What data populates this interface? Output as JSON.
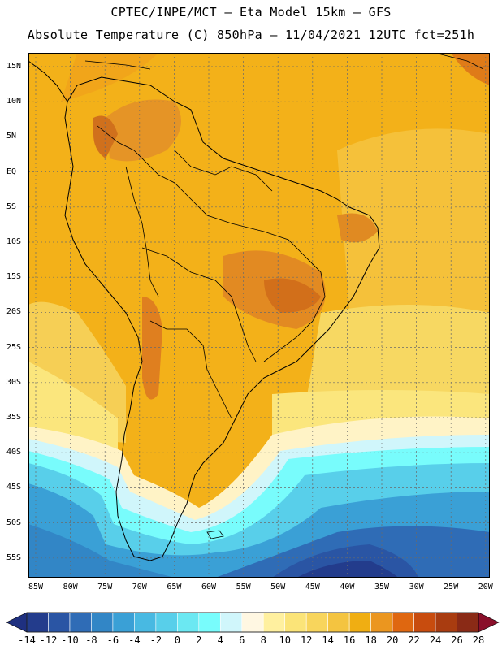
{
  "header": {
    "line1": "CPTEC/INPE/MCT –  Eta Model 15km – GFS",
    "line2": "Absolute Temperature (C) 850hPa – 11/04/2021 12UTC fct=251h"
  },
  "axes": {
    "lat_labels": [
      "15N",
      "10N",
      "5N",
      "EQ",
      "5S",
      "10S",
      "15S",
      "20S",
      "25S",
      "30S",
      "35S",
      "40S",
      "45S",
      "50S",
      "55S"
    ],
    "lon_labels": [
      "85W",
      "80W",
      "75W",
      "70W",
      "65W",
      "60W",
      "55W",
      "50W",
      "45W",
      "40W",
      "35W",
      "30W",
      "25W",
      "20W"
    ]
  },
  "colorbar": {
    "ticks": [
      "-14",
      "-12",
      "-10",
      "-8",
      "-6",
      "-4",
      "-2",
      "0",
      "2",
      "4",
      "6",
      "8",
      "10",
      "12",
      "14",
      "16",
      "18",
      "20",
      "22",
      "24",
      "26",
      "28"
    ],
    "colors": [
      "#233c8c",
      "#2a55a4",
      "#2f6cb6",
      "#3286c6",
      "#3aa0d6",
      "#48b9e2",
      "#58cfea",
      "#6be8f2",
      "#78fcfc",
      "#d0f6fb",
      "#fff7e2",
      "#fff09f",
      "#fbe478",
      "#f8d55c",
      "#f4c440",
      "#f0ae12",
      "#eb961f",
      "#df6710",
      "#c84c0e",
      "#a93c10",
      "#8a2a16"
    ],
    "under_color": "#1f3080",
    "over_color": "#8a0f2a"
  },
  "legend_colors": {
    "ocean_tropical": "#f3b119",
    "ocean_mid": "#f5d062",
    "land_hot": "#d87020"
  }
}
